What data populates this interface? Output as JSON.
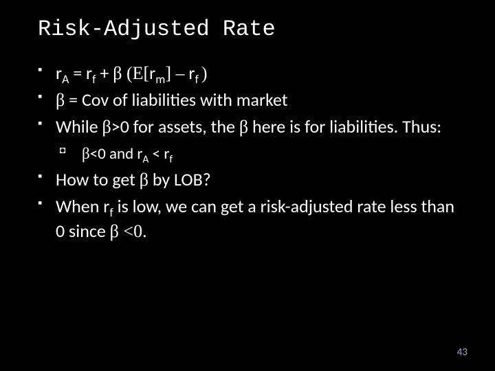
{
  "background_color": "#000000",
  "text_color": "#ffffff",
  "page_number_color": "#a9a0c9",
  "title": "Risk-Adjusted Rate",
  "title_font": "Consolas",
  "title_fontsize": 32,
  "body_fontsize": 26,
  "sub_fontsize": 23,
  "bullets": [
    {
      "html": "r<sub>A</sub> =  r<sub>f</sub> + <span class='serif'>β (E[</span>r<sub>m</sub><span class='serif'>] –</span> r<sub>f </sub><span class='serif'>)</span>"
    },
    {
      "html": "<span class='serif'>β</span> = Cov of liabilities with market"
    },
    {
      "html": "While <span class='serif'>β</span>>0 for assets, the <span class='serif'>β</span> here is for liabilities. Thus:"
    },
    {
      "sub": [
        {
          "html": "<span class='serif'>β</span>&lt;0 and r<sub>A</sub> &lt;  r<sub>f</sub>"
        }
      ]
    },
    {
      "html": "How to get <span class='serif'>β</span> by LOB?"
    },
    {
      "html": "When r<sub>f</sub> is low, we can get a risk-adjusted rate less than 0 since <span class='serif'>β &lt;0.</span>"
    }
  ],
  "page_number": "43"
}
